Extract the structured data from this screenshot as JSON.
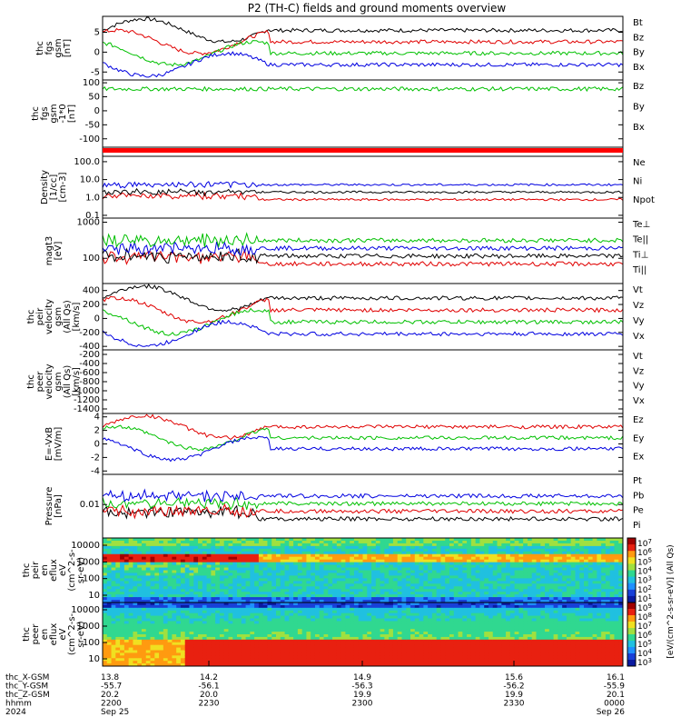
{
  "title": "P2 (TH-C) fields and ground moments overview",
  "chart_data": {
    "type": "line",
    "x_tick_labels": {
      "rows": [
        "thc_X-GSM",
        "thc_Y-GSM",
        "thc_Z-GSM",
        "hhmm",
        "2024"
      ],
      "columns": [
        [
          "13.8",
          "-55.7",
          "20.2",
          "2200",
          "Sep 25"
        ],
        [
          "14.2",
          "-56.1",
          "20.0",
          "2230",
          ""
        ],
        [
          "14.9",
          "-56.3",
          "19.9",
          "2300",
          ""
        ],
        [
          "15.6",
          "-56.2",
          "19.9",
          "2330",
          ""
        ],
        [
          "16.1",
          "-55.9",
          "20.1",
          "0000",
          "Sep 26"
        ]
      ]
    },
    "panels": [
      {
        "id": "fgs",
        "ylabel": [
          "thc",
          "fgs",
          "gsm",
          "[nT]"
        ],
        "ticks": [
          "5",
          "0",
          "-5"
        ],
        "ylim": [
          -7,
          9
        ],
        "legend": [
          {
            "name": "Bt",
            "color": "#000000"
          },
          {
            "name": "Bz",
            "color": "#e00000"
          },
          {
            "name": "By",
            "color": "#00c000"
          },
          {
            "name": "Bx",
            "color": "#0000e0"
          }
        ]
      },
      {
        "id": "fgs-dsl",
        "ylabel": [
          "thc",
          "fgs",
          "gsm",
          "-1*0",
          "[nT]"
        ],
        "ticks": [
          "100",
          "50",
          "0",
          "-50",
          "-100"
        ],
        "ylim": [
          -130,
          110
        ],
        "legend": [
          {
            "name": "Bz",
            "color": "#e00000"
          },
          {
            "name": "By",
            "color": "#00c000"
          },
          {
            "name": "Bx",
            "color": "#0000e0"
          }
        ]
      },
      {
        "id": "density",
        "ylabel": [
          "Density",
          "[1/cc]",
          "[cm-3]"
        ],
        "ticks": [
          "100.0",
          "10.0",
          "1.0",
          "0.1"
        ],
        "log": true,
        "ylim": [
          0.07,
          200
        ],
        "legend": [
          {
            "name": "Ne",
            "color": "#e00000"
          },
          {
            "name": "Ni",
            "color": "#000000"
          },
          {
            "name": "Npot",
            "color": "#0000e0"
          }
        ]
      },
      {
        "id": "temp",
        "ylabel": [
          "magt3",
          "[eV]"
        ],
        "ticks": [
          "1000",
          "100"
        ],
        "log": true,
        "ylim": [
          20,
          1300
        ],
        "legend": [
          {
            "name": "Te⊥",
            "color": "#e00000"
          },
          {
            "name": "Te||",
            "color": "#000000"
          },
          {
            "name": "Ti⊥",
            "color": "#0000e0"
          },
          {
            "name": "Ti||",
            "color": "#00c000"
          }
        ]
      },
      {
        "id": "ivel",
        "ylabel": [
          "thc",
          "peir",
          "velocity",
          "gsm",
          "(All Qs)",
          "[km/s]"
        ],
        "ticks": [
          "400",
          "200",
          "0",
          "-200",
          "-400"
        ],
        "ylim": [
          -450,
          500
        ],
        "legend": [
          {
            "name": "Vt",
            "color": "#000000"
          },
          {
            "name": "Vz",
            "color": "#e00000"
          },
          {
            "name": "Vy",
            "color": "#00c000"
          },
          {
            "name": "Vx",
            "color": "#0000e0"
          }
        ]
      },
      {
        "id": "evel",
        "ylabel": [
          "thc",
          "peer",
          "velocity",
          "gsm",
          "(All Qs)",
          "[km/s]"
        ],
        "ticks": [
          "-200",
          "-400",
          "-600",
          "-800",
          "-1000",
          "-1200",
          "-1400"
        ],
        "ylim": [
          -1500,
          -100
        ],
        "legend": [
          {
            "name": "Vt",
            "color": "#000000"
          },
          {
            "name": "Vz",
            "color": "#e00000"
          },
          {
            "name": "Vy",
            "color": "#00c000"
          },
          {
            "name": "Vx",
            "color": "#0000e0"
          }
        ]
      },
      {
        "id": "efield",
        "ylabel": [
          "E=-VxB",
          "[mV/m]"
        ],
        "ticks": [
          "4",
          "2",
          "0",
          "-2",
          "-4"
        ],
        "ylim": [
          -4.5,
          4.5
        ],
        "legend": [
          {
            "name": "Ez",
            "color": "#e00000"
          },
          {
            "name": "Ey",
            "color": "#00c000"
          },
          {
            "name": "Ex",
            "color": "#0000e0"
          }
        ]
      },
      {
        "id": "pressure",
        "ylabel": [
          "Pressure",
          "[nPa]"
        ],
        "ticks": [
          "0.01"
        ],
        "log": true,
        "ylim": [
          0.001,
          0.08
        ],
        "legend": [
          {
            "name": "Pt",
            "color": "#000000"
          },
          {
            "name": "Pb",
            "color": "#e00000"
          },
          {
            "name": "Pe",
            "color": "#00c000"
          },
          {
            "name": "Pi",
            "color": "#0000e0"
          }
        ]
      },
      {
        "id": "ispec",
        "ylabel": [
          "thc",
          "peir",
          "en",
          "eflux",
          "eV",
          "(cm^2-s-",
          "sr-eV)"
        ],
        "ticks": [
          "10000",
          "1000",
          "100",
          "10"
        ],
        "log": true,
        "type": "heatmap"
      },
      {
        "id": "espec",
        "ylabel": [
          "thc",
          "peer",
          "en",
          "eflux",
          "eV",
          "(cm^2-s-",
          "sr-eV)"
        ],
        "ticks": [
          "10000",
          "1000",
          "100",
          "10"
        ],
        "log": true,
        "type": "heatmap"
      }
    ],
    "colorbar": {
      "label": "[eV/(cm^2-s-sr-eV)] (All Qs)",
      "ticks_top": [
        "10^7",
        "10^6",
        "10^5",
        "10^4",
        "10^3",
        "10^2",
        "10^1"
      ],
      "ticks_bottom": [
        "10^9",
        "10^8",
        "10^7",
        "10^6",
        "10^5",
        "10^4",
        "10^3"
      ]
    }
  }
}
